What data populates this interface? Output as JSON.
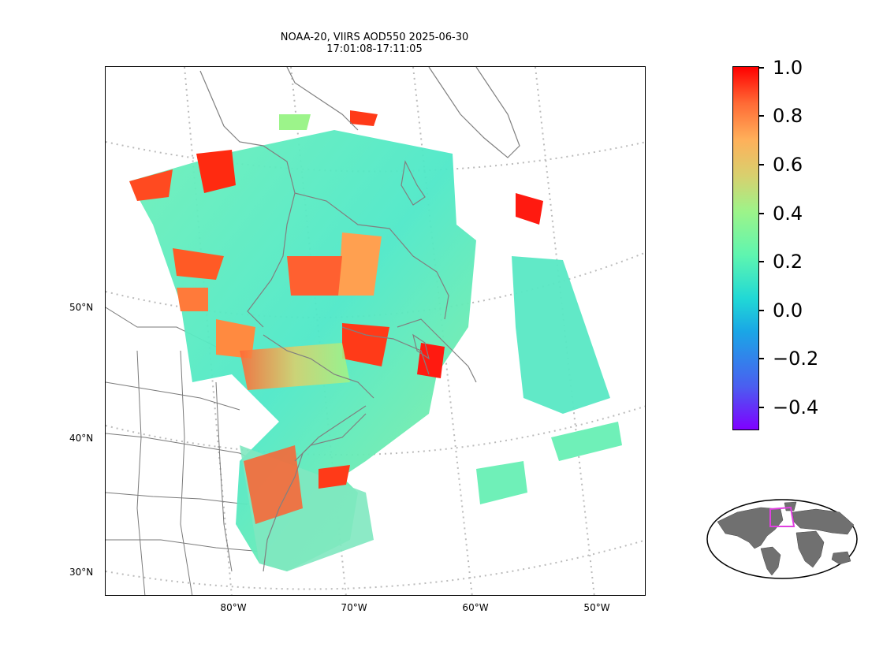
{
  "title": {
    "line1": "NOAA-20, VIIRS AOD550 2025-06-30",
    "line2": "17:01:08-17:11:05"
  },
  "latitude_labels": [
    "50°N",
    "40°N",
    "30°N"
  ],
  "longitude_labels": [
    "80°W",
    "70°W",
    "60°W",
    "50°W"
  ],
  "colorbar": {
    "ticks": [
      "1.0",
      "0.8",
      "0.6",
      "0.4",
      "0.2",
      "0.0",
      "−0.2",
      "−0.4"
    ],
    "min": -0.5,
    "max": 1.0,
    "colormap": "rainbow"
  },
  "colors": {
    "coastline": "#808080",
    "borders": "#7a7a7a",
    "gridlines": "#bbbbbb",
    "globe_land": "#707070",
    "globe_box": "#e040e0"
  },
  "inset": {
    "type": "world-locator-map",
    "highlight": "magenta-outline-region"
  }
}
